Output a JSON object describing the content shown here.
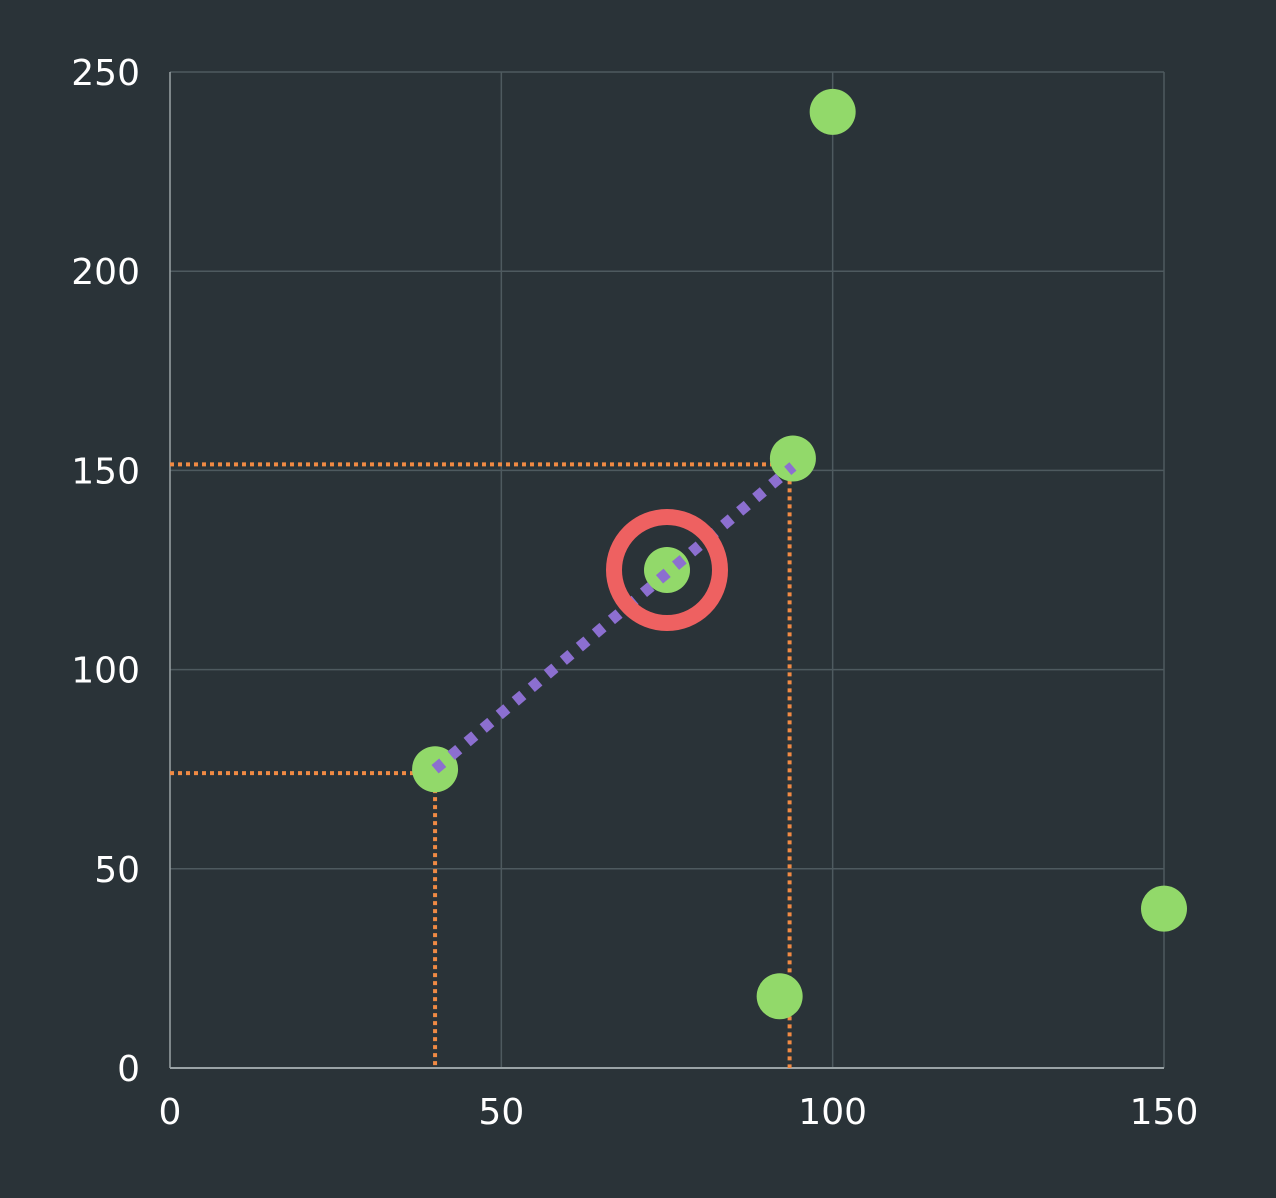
{
  "chart_data": {
    "type": "scatter",
    "xlim": [
      0,
      150
    ],
    "ylim": [
      0,
      250
    ],
    "x_ticks": [
      0,
      50,
      100,
      150
    ],
    "y_ticks": [
      0,
      50,
      100,
      150,
      200,
      250
    ],
    "x_tick_labels": [
      "0",
      "50",
      "100",
      "150"
    ],
    "y_tick_labels": [
      "0",
      "50",
      "100",
      "150",
      "200",
      "250"
    ],
    "grid": true,
    "points": [
      {
        "x": 40,
        "y": 75
      },
      {
        "x": 75,
        "y": 125
      },
      {
        "x": 94,
        "y": 153
      },
      {
        "x": 100,
        "y": 240
      },
      {
        "x": 92,
        "y": 18
      },
      {
        "x": 150,
        "y": 40
      }
    ],
    "highlight": {
      "x": 75,
      "y": 125
    },
    "segment": {
      "from": {
        "x": 40,
        "y": 75
      },
      "to": {
        "x": 94,
        "y": 151
      }
    },
    "guide_lines": [
      {
        "x": 40,
        "y": 74
      },
      {
        "x": 93.5,
        "y": 151.5
      }
    ],
    "colors": {
      "background": "#2a3338",
      "grid": "#4e5a5f",
      "axis": "#9aa3a6",
      "point": "#92d96a",
      "highlight_ring": "#ee6161",
      "segment": "#8c6fd0",
      "guide": "#f08a44",
      "text": "#ffffff"
    }
  }
}
